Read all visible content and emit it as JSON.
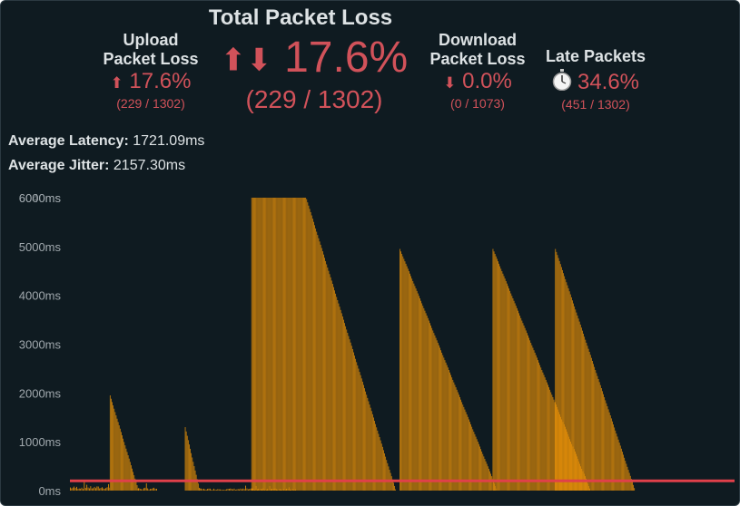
{
  "title": "Total Packet Loss",
  "total": {
    "arrows": "⬆⬇",
    "percent": "17.6%",
    "fraction": "(229 / 1302)"
  },
  "upload": {
    "label_line1": "Upload",
    "label_line2": "Packet Loss",
    "arrow": "⬆",
    "percent": "17.6%",
    "fraction": "(229 / 1302)"
  },
  "download": {
    "label_line1": "Download",
    "label_line2": "Packet Loss",
    "arrow": "⬇",
    "percent": "0.0%",
    "fraction": "(0 / 1073)"
  },
  "late": {
    "label": "Late Packets",
    "icon": "stopwatch-icon",
    "percent": "34.6%",
    "fraction": "(451 / 1302)"
  },
  "latency": {
    "label": "Average Latency:",
    "value": "1721.09ms"
  },
  "jitter": {
    "label": "Average Jitter:",
    "value": "2157.30ms"
  },
  "colors": {
    "background": "#0f1b21",
    "bars": "#d6870a",
    "threshold": "#e0404a",
    "loss": "#d1525a",
    "text": "#dde2e4"
  },
  "chart_data": {
    "type": "bar",
    "y_unit": "ms",
    "ylim": [
      0,
      6000
    ],
    "yticks": [
      "0ms",
      "1000ms",
      "2000ms",
      "3000ms",
      "4000ms",
      "5000ms",
      "6000ms"
    ],
    "overlap_tick": "6040ms",
    "threshold_ms": 200,
    "baseline_noise": [
      {
        "x0": 0.0,
        "x1": 0.06,
        "level": 60,
        "max": 200
      },
      {
        "x0": 0.103,
        "x1": 0.13,
        "level": 40,
        "max": 160
      },
      {
        "x0": 0.195,
        "x1": 0.26,
        "level": 30,
        "max": 60
      },
      {
        "x0": 0.26,
        "x1": 0.34,
        "level": 30,
        "max": 120
      }
    ],
    "spikes": [
      {
        "start": 0.06,
        "end": 0.103,
        "peak": 1950,
        "type": "decay"
      },
      {
        "start": 0.173,
        "end": 0.195,
        "peak": 1300,
        "type": "decay"
      },
      {
        "start": 0.273,
        "end": 0.49,
        "peak": 6000,
        "type": "plateau",
        "plateau_end": 0.355
      },
      {
        "start": 0.496,
        "end": 0.643,
        "peak": 4950,
        "type": "decay"
      },
      {
        "start": 0.636,
        "end": 0.783,
        "peak": 4950,
        "type": "decay"
      },
      {
        "start": 0.73,
        "end": 0.85,
        "peak": 4950,
        "type": "decay"
      }
    ]
  }
}
